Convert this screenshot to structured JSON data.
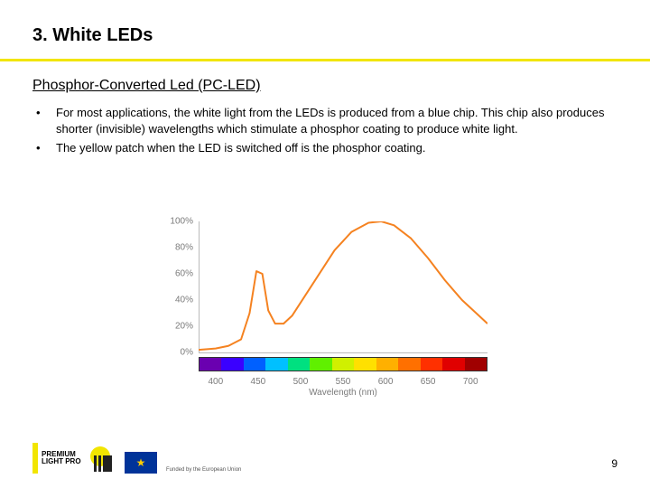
{
  "title": "3. White LEDs",
  "subtitle": "Phosphor-Converted Led (PC-LED)",
  "bullets": [
    "For most applications, the white light from the LEDs is produced from a blue chip. This chip also produces shorter (invisible) wavelengths which stimulate a phosphor coating to produce white light.",
    "The yellow patch when the LED is switched off is the phosphor coating."
  ],
  "chart": {
    "type": "line",
    "line_color": "#f58220",
    "line_width": 2,
    "background_color": "#ffffff",
    "axis_color": "#bbbbbb",
    "tick_color": "#7a7a7a",
    "y_ticks": [
      "0%",
      "20%",
      "40%",
      "60%",
      "80%",
      "100%"
    ],
    "x_ticks": [
      400,
      450,
      500,
      550,
      600,
      650,
      700
    ],
    "x_min": 380,
    "x_max": 720,
    "y_min": 0,
    "y_max": 100,
    "x_label": "Wavelength (nm)",
    "points": [
      [
        380,
        2
      ],
      [
        400,
        3
      ],
      [
        415,
        5
      ],
      [
        430,
        10
      ],
      [
        440,
        30
      ],
      [
        448,
        62
      ],
      [
        455,
        60
      ],
      [
        462,
        32
      ],
      [
        470,
        22
      ],
      [
        480,
        22
      ],
      [
        490,
        28
      ],
      [
        500,
        38
      ],
      [
        520,
        58
      ],
      [
        540,
        78
      ],
      [
        560,
        92
      ],
      [
        580,
        99
      ],
      [
        595,
        100
      ],
      [
        610,
        97
      ],
      [
        630,
        87
      ],
      [
        650,
        72
      ],
      [
        670,
        55
      ],
      [
        690,
        40
      ],
      [
        710,
        28
      ],
      [
        720,
        22
      ]
    ],
    "spectrum_colors": [
      "#6a00b0",
      "#3a00ff",
      "#0060ff",
      "#00c0ff",
      "#00e080",
      "#60f000",
      "#d0f000",
      "#ffe000",
      "#ffb000",
      "#ff7000",
      "#ff3000",
      "#e00000",
      "#a00000"
    ]
  },
  "footer": {
    "logo_line1": "PREMIUM",
    "logo_line2": "LIGHT PRO",
    "eu_caption": "Funded by\nthe European Union"
  },
  "page_number": "9",
  "accent_color": "#f2e500"
}
